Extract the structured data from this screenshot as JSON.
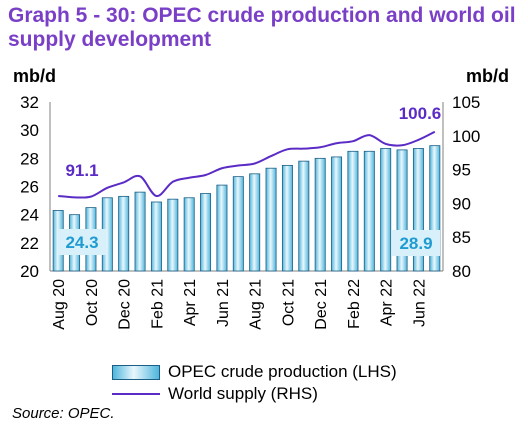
{
  "title": "Graph 5 - 30: OPEC crude production and world oil supply development",
  "source": "Source: OPEC.",
  "chart_data": {
    "type": "bar",
    "left_unit": "mb/d",
    "right_unit": "mb/d",
    "categories": [
      "Aug 20",
      "Sep 20",
      "Oct 20",
      "Nov 20",
      "Dec 20",
      "Jan 21",
      "Feb 21",
      "Mar 21",
      "Apr 21",
      "May 21",
      "Jun 21",
      "Jul 21",
      "Aug 21",
      "Sep 21",
      "Oct 21",
      "Nov 21",
      "Dec 21",
      "Jan 22",
      "Feb 22",
      "Mar 22",
      "Apr 22",
      "May 22",
      "Jun 22",
      "Jul 22"
    ],
    "x_tick_labels": [
      "Aug 20",
      "Oct 20",
      "Dec 20",
      "Feb 21",
      "Apr 21",
      "Jun 21",
      "Aug 21",
      "Oct 21",
      "Dec 21",
      "Feb 22",
      "Apr 22",
      "Jun 22"
    ],
    "ylim_left": [
      20,
      32
    ],
    "yticks_left": [
      20,
      22,
      24,
      26,
      28,
      30,
      32
    ],
    "ylim_right": [
      80,
      105
    ],
    "yticks_right": [
      80,
      85,
      90,
      95,
      100,
      105
    ],
    "series": [
      {
        "name": "OPEC crude production (LHS)",
        "type": "bar",
        "axis": "left",
        "values": [
          24.3,
          24.0,
          24.5,
          25.2,
          25.3,
          25.6,
          24.9,
          25.1,
          25.2,
          25.5,
          26.1,
          26.7,
          26.9,
          27.3,
          27.5,
          27.8,
          28.0,
          28.1,
          28.5,
          28.5,
          28.7,
          28.6,
          28.7,
          28.9
        ]
      },
      {
        "name": "World supply (RHS)",
        "type": "line",
        "axis": "right",
        "values": [
          91.1,
          90.9,
          91.0,
          92.3,
          93.1,
          94.0,
          91.1,
          93.2,
          93.8,
          94.2,
          95.2,
          95.6,
          95.9,
          97.0,
          98.0,
          98.1,
          98.3,
          98.9,
          99.2,
          100.1,
          98.8,
          98.6,
          99.4,
          100.6
        ]
      }
    ],
    "data_labels": {
      "bar_first": "24.3",
      "bar_last": "28.9",
      "line_first": "91.1",
      "line_last": "100.6"
    },
    "legend_position": "bottom",
    "grid": false,
    "colors": {
      "bar_fill": "#4fb6dc",
      "bar_light": "#e9f7fd",
      "bar_border": "#1c5f86",
      "line": "#5b2bc6",
      "title": "#7a3fc7",
      "label_box": "#d8f0fa",
      "bar_label_text": "#1f9bd1",
      "line_label_text": "#5b2bc6"
    }
  }
}
